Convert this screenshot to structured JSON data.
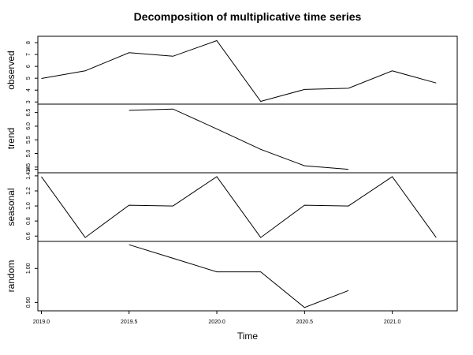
{
  "chart_data": {
    "type": "line",
    "title": "Decomposition of multiplicative time series",
    "xlabel": "Time",
    "x": [
      2019.0,
      2019.25,
      2019.5,
      2019.75,
      2020.0,
      2020.25,
      2020.5,
      2020.75,
      2021.0,
      2021.25
    ],
    "xlim": [
      2018.98,
      2021.37
    ],
    "x_ticks": [
      2019.0,
      2019.5,
      2020.0,
      2020.5,
      2021.0
    ],
    "x_tick_labels": [
      "2019.0",
      "2019.5",
      "2020.0",
      "2020.5",
      "2021.0"
    ],
    "panels": [
      {
        "name": "observed",
        "values": [
          4.98,
          5.62,
          7.15,
          6.85,
          8.17,
          3.05,
          4.05,
          4.15,
          5.62,
          4.6
        ],
        "ylim": [
          2.95,
          8.4
        ],
        "y_ticks": [
          3,
          4,
          5,
          6,
          7,
          8
        ],
        "y_tick_labels": [
          "3",
          "4",
          "5",
          "6",
          "7",
          "8"
        ]
      },
      {
        "name": "trend",
        "values": [
          null,
          null,
          6.58,
          6.63,
          5.9,
          5.15,
          4.55,
          4.42,
          null,
          null
        ],
        "ylim": [
          4.35,
          6.75
        ],
        "y_ticks": [
          4.5,
          5.0,
          5.5,
          6.0,
          6.5
        ],
        "y_tick_labels": [
          "4.5",
          "5.0",
          "5.5",
          "6.0",
          "6.5"
        ],
        "extra_ticks": [
          {
            "value": 4.42,
            "label": "14"
          }
        ]
      },
      {
        "name": "seasonal",
        "values": [
          1.39,
          0.58,
          1.01,
          1.0,
          1.39,
          0.58,
          1.01,
          1.0,
          1.39,
          0.58
        ],
        "ylim": [
          0.55,
          1.42
        ],
        "y_ticks": [
          0.6,
          0.8,
          1.0,
          1.2,
          1.4
        ],
        "y_tick_labels": [
          "0.6",
          "0.8",
          "1.0",
          "1.2",
          "1.4"
        ]
      },
      {
        "name": "random",
        "values": [
          null,
          null,
          1.07,
          1.03,
          0.99,
          0.99,
          0.885,
          0.935,
          null,
          null
        ],
        "ylim": [
          0.88,
          1.075
        ],
        "y_ticks": [
          0.9,
          1.0
        ],
        "y_tick_labels": [
          "0.90",
          "1.00"
        ]
      }
    ],
    "grid": false,
    "legend": "none"
  }
}
